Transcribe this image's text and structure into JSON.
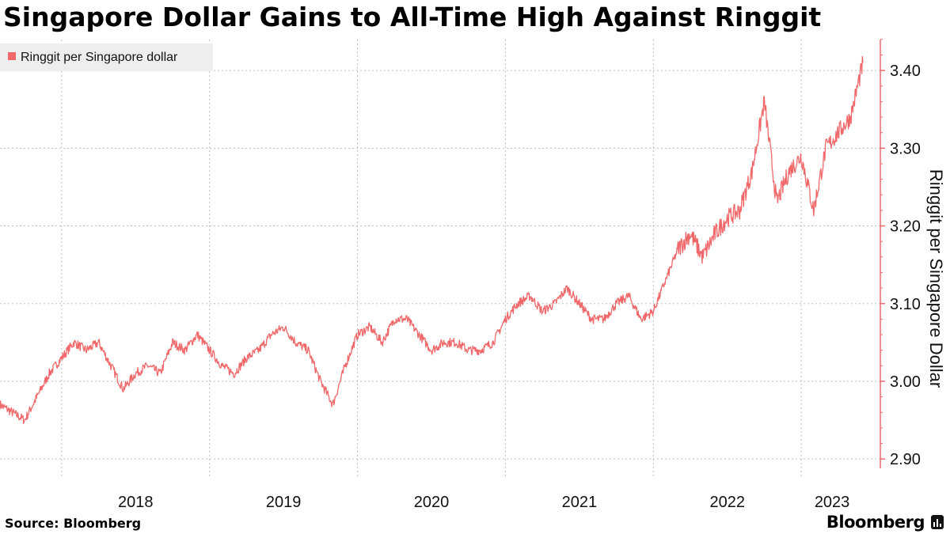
{
  "chart_data": {
    "type": "line",
    "title": "Singapore Dollar Gains to All-Time High Against Ringgit",
    "series": [
      {
        "name": "Ringgit per Singapore dollar",
        "color": "#f0686a",
        "x": [
          "2017-08",
          "2017-09",
          "2017-10",
          "2017-11",
          "2017-12",
          "2018-01",
          "2018-02",
          "2018-03",
          "2018-04",
          "2018-05",
          "2018-06",
          "2018-07",
          "2018-08",
          "2018-09",
          "2018-10",
          "2018-11",
          "2018-12",
          "2019-01",
          "2019-02",
          "2019-03",
          "2019-04",
          "2019-05",
          "2019-06",
          "2019-07",
          "2019-08",
          "2019-09",
          "2019-10",
          "2019-11",
          "2019-12",
          "2020-01",
          "2020-02",
          "2020-03",
          "2020-04",
          "2020-05",
          "2020-06",
          "2020-07",
          "2020-08",
          "2020-09",
          "2020-10",
          "2020-11",
          "2020-12",
          "2021-01",
          "2021-02",
          "2021-03",
          "2021-04",
          "2021-05",
          "2021-06",
          "2021-07",
          "2021-08",
          "2021-09",
          "2021-10",
          "2021-11",
          "2021-12",
          "2022-01",
          "2022-02",
          "2022-03",
          "2022-04",
          "2022-05",
          "2022-06",
          "2022-07",
          "2022-08",
          "2022-09",
          "2022-10",
          "2022-11",
          "2022-12",
          "2023-01",
          "2023-02",
          "2023-03",
          "2023-04",
          "2023-05",
          "2023-06"
        ],
        "values": [
          2.97,
          2.96,
          2.95,
          2.98,
          3.01,
          3.03,
          3.05,
          3.04,
          3.05,
          3.02,
          2.99,
          3.01,
          3.02,
          3.01,
          3.05,
          3.04,
          3.06,
          3.04,
          3.02,
          3.01,
          3.03,
          3.04,
          3.06,
          3.07,
          3.05,
          3.04,
          3.0,
          2.97,
          3.02,
          3.06,
          3.07,
          3.05,
          3.08,
          3.08,
          3.06,
          3.04,
          3.05,
          3.05,
          3.04,
          3.04,
          3.05,
          3.08,
          3.1,
          3.11,
          3.09,
          3.1,
          3.12,
          3.1,
          3.08,
          3.08,
          3.1,
          3.11,
          3.08,
          3.09,
          3.13,
          3.17,
          3.19,
          3.16,
          3.19,
          3.21,
          3.22,
          3.27,
          3.36,
          3.23,
          3.27,
          3.29,
          3.22,
          3.3,
          3.32,
          3.34,
          3.41
        ]
      }
    ],
    "xtick_labels": [
      "2018",
      "2019",
      "2020",
      "2021",
      "2022",
      "2023"
    ],
    "ytick_labels": [
      "2.90",
      "3.00",
      "3.10",
      "3.20",
      "3.30",
      "3.40"
    ],
    "ytick_values": [
      2.9,
      3.0,
      3.1,
      3.2,
      3.3,
      3.4
    ],
    "ylim": [
      2.89,
      3.45
    ],
    "xlim": [
      "2017-08",
      "2023-06"
    ],
    "ylabel": "Ringgit per Singapore Dollar",
    "xlabel": "",
    "grid": true,
    "legend_position": "top-left",
    "y_axis_side": "right"
  },
  "footer": {
    "source": "Source: Bloomberg",
    "brand": "Bloomberg"
  },
  "colors": {
    "line": "#f0686a",
    "axis": "#f0686a",
    "grid": "#bdbdbd",
    "legend_bg": "#eeeeee"
  }
}
